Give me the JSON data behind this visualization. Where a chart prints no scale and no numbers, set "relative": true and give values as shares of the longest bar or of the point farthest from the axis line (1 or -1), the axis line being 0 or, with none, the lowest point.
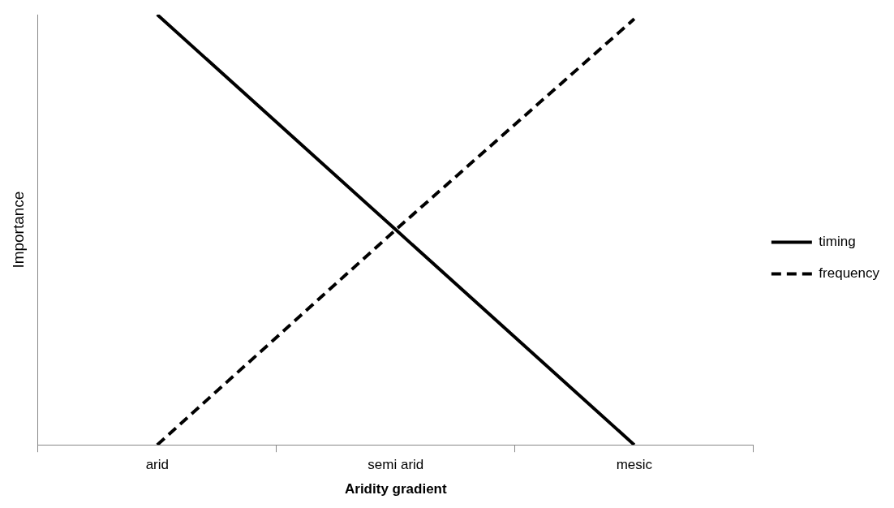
{
  "chart_data": {
    "type": "line",
    "xlabel": "Aridity gradient",
    "ylabel": "Importance",
    "relative": true,
    "categories": [
      "arid",
      "semi arid",
      "mesic"
    ],
    "series": [
      {
        "name": "timing",
        "color": "#000000",
        "values": [
          1,
          0.5,
          0
        ],
        "line_style": "solid"
      },
      {
        "name": "frequency",
        "color": "#000000",
        "values": [
          0,
          0.5,
          0.99
        ],
        "line_style": "dashed"
      }
    ],
    "legend": "right",
    "grid": false,
    "marker": "none"
  }
}
